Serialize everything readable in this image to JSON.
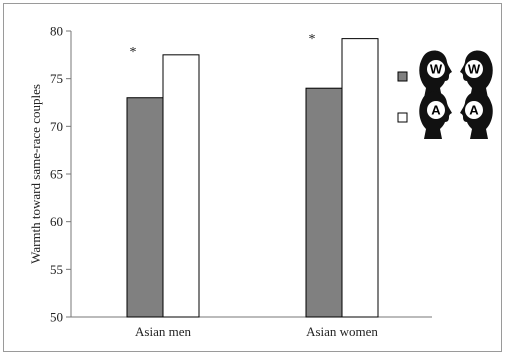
{
  "chart_data": {
    "type": "bar",
    "categories": [
      "Asian men",
      "Asian women"
    ],
    "series": [
      {
        "key": "white-couple",
        "color": "#808080",
        "values": [
          73.0,
          74.0
        ]
      },
      {
        "key": "asian-couple",
        "color": "#ffffff",
        "values": [
          77.5,
          79.2
        ]
      }
    ],
    "ylabel": "Warmth toward same-race couples",
    "ylim": [
      50,
      80
    ],
    "yticks": [
      50,
      55,
      60,
      65,
      70,
      75,
      80
    ],
    "grid": false,
    "annotations": [
      "*",
      "*"
    ],
    "legend": {
      "placement": "top-right",
      "entries": [
        {
          "series": "white-couple",
          "icon": "two-profile-heads-icon",
          "letters": [
            "W",
            "W"
          ]
        },
        {
          "series": "asian-couple",
          "icon": "two-profile-heads-icon",
          "letters": [
            "A",
            "A"
          ]
        }
      ]
    }
  }
}
